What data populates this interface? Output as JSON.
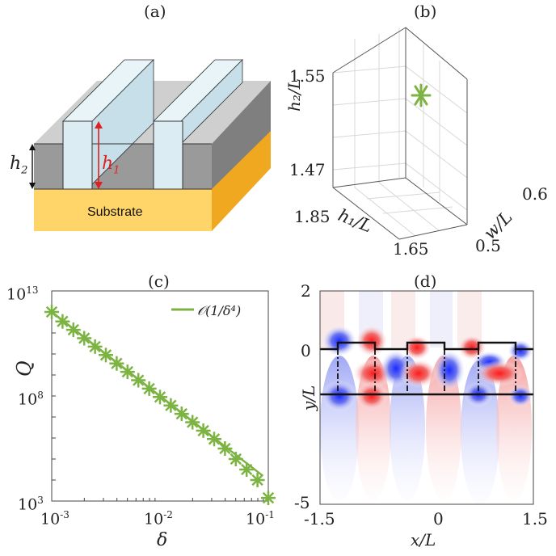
{
  "panels": {
    "a": {
      "label": "(a)",
      "h1_label": "h",
      "h1_sub": "1",
      "h2_label": "h",
      "h2_sub": "2",
      "substrate_label": "Substrate",
      "colors": {
        "ridge": "#dcecf3",
        "slab_top": "#cfcfcf",
        "slab_front": "#9a9a9a",
        "slab_side": "#7f7f7f",
        "substrate_front": "#ffd56a",
        "substrate_side": "#f0a820",
        "arrow_h1": "#e02020"
      }
    },
    "b": {
      "label": "(b)",
      "zlabel": "h₂/L",
      "xlabel": "h₁/L",
      "ylabel": "w/L",
      "z_ticks": [
        "1.55",
        "1.47"
      ],
      "x_ticks": [
        "1.85",
        "1.65"
      ],
      "y_ticks": [
        "0.6",
        "0.5"
      ],
      "marker_color": "#7cb342"
    },
    "c": {
      "label": "(c)",
      "ylabel": "Q",
      "xlabel": "δ",
      "legend": "𝒪(1/δ⁴)",
      "y_ticks": [
        {
          "base": "10",
          "exp": "13"
        },
        {
          "base": "10",
          "exp": "8"
        },
        {
          "base": "10",
          "exp": "3"
        }
      ],
      "x_ticks": [
        {
          "base": "10",
          "exp": "-3"
        },
        {
          "base": "10",
          "exp": "-2"
        },
        {
          "base": "10",
          "exp": "-1"
        }
      ],
      "color": "#7cb342"
    },
    "d": {
      "label": "(d)",
      "ylabel": "y/L",
      "xlabel": "x/L",
      "y_ticks": [
        "2",
        "0",
        "-5"
      ],
      "x_ticks": [
        "-1.5",
        "0",
        "1.5"
      ]
    }
  },
  "chart_data": [
    {
      "type": "scatter",
      "panel": "b",
      "xlabel": "h₁/L",
      "ylabel": "w/L",
      "zlabel": "h₂/L",
      "xlim": [
        1.65,
        1.85
      ],
      "ylim": [
        0.5,
        0.6
      ],
      "zlim": [
        1.47,
        1.55
      ],
      "points": [
        {
          "h1": 1.75,
          "w": 0.55,
          "h2": 1.52
        }
      ]
    },
    {
      "type": "scatter",
      "panel": "c",
      "xscale": "log",
      "yscale": "log",
      "xlabel": "δ",
      "ylabel": "Q",
      "xlim": [
        0.001,
        0.1
      ],
      "ylim": [
        1000,
        10000000000000
      ],
      "series": [
        {
          "name": "",
          "marker": "asterisk",
          "log10_delta": [
            -3.0,
            -2.9,
            -2.8,
            -2.7,
            -2.6,
            -2.5,
            -2.4,
            -2.3,
            -2.2,
            -2.1,
            -2.0,
            -1.9,
            -1.8,
            -1.7,
            -1.6,
            -1.5,
            -1.4,
            -1.3,
            -1.2,
            -1.1,
            -1.0
          ],
          "log10_Q": [
            12.0,
            11.55,
            11.15,
            10.75,
            10.35,
            9.95,
            9.55,
            9.15,
            8.75,
            8.35,
            7.95,
            7.55,
            7.15,
            6.75,
            6.35,
            5.95,
            5.5,
            5.0,
            4.5,
            4.0,
            3.15
          ]
        },
        {
          "name": "𝒪(1/δ⁴)",
          "marker": "line",
          "log10_delta": [
            -3.0,
            -1.05
          ],
          "log10_Q": [
            12.0,
            4.2
          ]
        }
      ],
      "legend": "top-right"
    },
    {
      "type": "heatmap",
      "panel": "d",
      "xlabel": "x/L",
      "ylabel": "y/L",
      "xlim": [
        -1.5,
        1.5
      ],
      "ylim": [
        -5,
        2
      ],
      "colormap": "blue-white-red"
    }
  ]
}
